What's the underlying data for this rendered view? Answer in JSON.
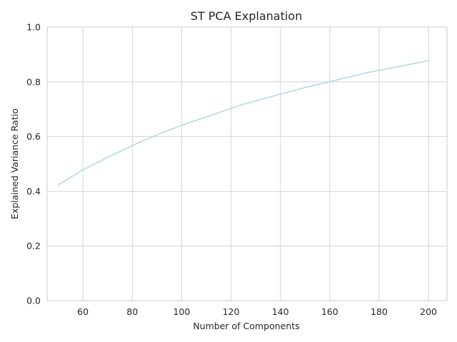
{
  "chart_data": {
    "type": "line",
    "title": "ST PCA Explanation",
    "xlabel": "Number of Components",
    "ylabel": "Explained Variance Ratio",
    "xlim": [
      45.5,
      207.5
    ],
    "ylim": [
      0.0,
      1.0
    ],
    "x_ticks": [
      60,
      80,
      100,
      120,
      140,
      160,
      180,
      200
    ],
    "x_tick_labels": [
      "60",
      "80",
      "100",
      "120",
      "140",
      "160",
      "180",
      "200"
    ],
    "y_ticks": [
      0.0,
      0.2,
      0.4,
      0.6,
      0.8,
      1.0
    ],
    "y_tick_labels": [
      "0.0",
      "0.2",
      "0.4",
      "0.6",
      "0.8",
      "1.0"
    ],
    "grid": true,
    "line_color": "#add8e6",
    "series": [
      {
        "x": [
          50,
          60,
          70,
          80,
          90,
          100,
          125,
          150,
          175,
          200
        ],
        "values": [
          0.423,
          0.478,
          0.524,
          0.567,
          0.606,
          0.641,
          0.718,
          0.779,
          0.833,
          0.877
        ]
      }
    ]
  }
}
